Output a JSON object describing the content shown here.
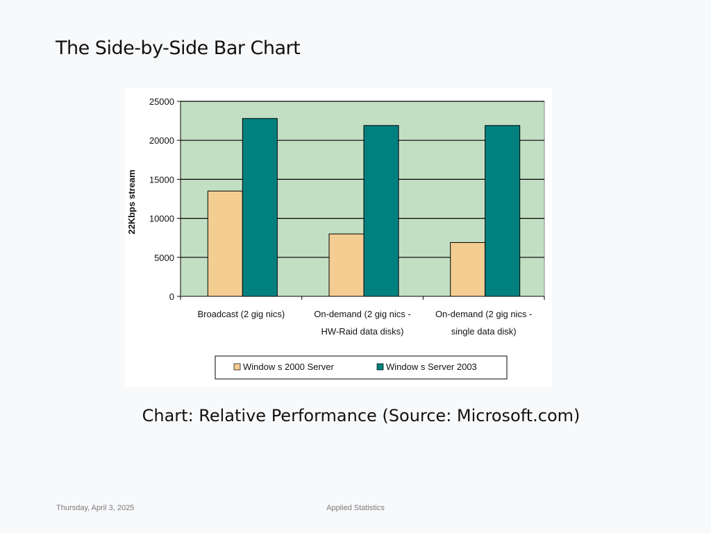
{
  "slide": {
    "title": "The Side-by-Side Bar Chart",
    "caption": "Chart: Relative Performance (Source: Microsoft.com)",
    "footer_date": "Thursday, April 3, 2025",
    "footer_center": "Applied Statistics"
  },
  "chart_data": {
    "type": "bar",
    "ylabel": "22Kbps stream",
    "xlabel": "",
    "ylim": [
      0,
      25000
    ],
    "yticks": [
      0,
      5000,
      10000,
      15000,
      20000,
      25000
    ],
    "grid": true,
    "legend_position": "bottom",
    "plot_background": "#c2dfc4",
    "categories": [
      [
        "Broadcast (2 gig nics)"
      ],
      [
        "On-demand (2 gig nics -",
        "HW-Raid data disks)"
      ],
      [
        "On-demand (2 gig nics -",
        "single data disk)"
      ]
    ],
    "series": [
      {
        "name": "Window s 2000 Server",
        "color": "#f4cd93",
        "values": [
          13500,
          8000,
          6900
        ]
      },
      {
        "name": "Window s Server 2003",
        "color": "#00817f",
        "values": [
          22800,
          21900,
          21900
        ]
      }
    ]
  }
}
